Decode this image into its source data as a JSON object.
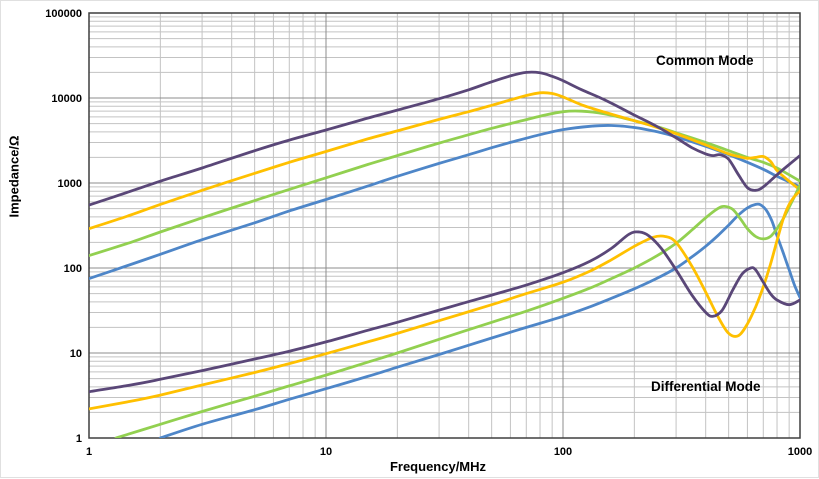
{
  "chart_data": {
    "type": "line",
    "title": "",
    "xlabel": "Frequency/MHz",
    "ylabel": "Impedance/Ω",
    "x_scale": "log",
    "y_scale": "log",
    "xlim": [
      1,
      1000
    ],
    "ylim": [
      1,
      100000
    ],
    "x_ticks": [
      "1",
      "10",
      "100",
      "1000"
    ],
    "y_ticks": [
      "1",
      "10",
      "100",
      "1000",
      "10000",
      "100000"
    ],
    "grid": "log major and minor, gray",
    "legend": "none",
    "annotations": [
      {
        "text": "Common Mode"
      },
      {
        "text": "Differential Mode"
      }
    ],
    "colors": {
      "purple": "#5A4778",
      "orange": "#FFC000",
      "green": "#92D050",
      "blue": "#4E86C8"
    },
    "series": [
      {
        "name": "common-mode-blue",
        "group": "common-mode",
        "color": "#4E86C8",
        "points": [
          [
            1,
            75
          ],
          [
            1.5,
            110
          ],
          [
            2,
            145
          ],
          [
            3,
            215
          ],
          [
            5,
            340
          ],
          [
            7,
            470
          ],
          [
            10,
            640
          ],
          [
            15,
            920
          ],
          [
            20,
            1200
          ],
          [
            30,
            1700
          ],
          [
            40,
            2150
          ],
          [
            50,
            2600
          ],
          [
            60,
            3000
          ],
          [
            80,
            3700
          ],
          [
            100,
            4250
          ],
          [
            130,
            4650
          ],
          [
            160,
            4750
          ],
          [
            200,
            4500
          ],
          [
            250,
            4000
          ],
          [
            300,
            3500
          ],
          [
            400,
            2700
          ],
          [
            500,
            2150
          ],
          [
            600,
            1750
          ],
          [
            700,
            1450
          ],
          [
            800,
            1200
          ],
          [
            900,
            1030
          ],
          [
            1000,
            900
          ]
        ]
      },
      {
        "name": "common-mode-green",
        "group": "common-mode",
        "color": "#92D050",
        "points": [
          [
            1,
            140
          ],
          [
            1.5,
            200
          ],
          [
            2,
            265
          ],
          [
            3,
            390
          ],
          [
            5,
            620
          ],
          [
            7,
            840
          ],
          [
            10,
            1150
          ],
          [
            15,
            1650
          ],
          [
            20,
            2100
          ],
          [
            30,
            2950
          ],
          [
            40,
            3700
          ],
          [
            50,
            4400
          ],
          [
            60,
            5000
          ],
          [
            80,
            6100
          ],
          [
            100,
            6900
          ],
          [
            120,
            7000
          ],
          [
            150,
            6500
          ],
          [
            200,
            5400
          ],
          [
            250,
            4600
          ],
          [
            300,
            3900
          ],
          [
            400,
            3000
          ],
          [
            500,
            2400
          ],
          [
            600,
            2000
          ],
          [
            700,
            1750
          ],
          [
            800,
            1500
          ],
          [
            900,
            1250
          ],
          [
            1000,
            1050
          ]
        ]
      },
      {
        "name": "common-mode-orange",
        "group": "common-mode",
        "color": "#FFC000",
        "points": [
          [
            1,
            290
          ],
          [
            1.5,
            420
          ],
          [
            2,
            560
          ],
          [
            3,
            820
          ],
          [
            5,
            1300
          ],
          [
            7,
            1750
          ],
          [
            10,
            2350
          ],
          [
            15,
            3300
          ],
          [
            20,
            4100
          ],
          [
            30,
            5600
          ],
          [
            40,
            6900
          ],
          [
            50,
            8200
          ],
          [
            60,
            9500
          ],
          [
            70,
            10700
          ],
          [
            80,
            11500
          ],
          [
            90,
            11300
          ],
          [
            100,
            10300
          ],
          [
            120,
            8300
          ],
          [
            150,
            6800
          ],
          [
            200,
            5400
          ],
          [
            250,
            4500
          ],
          [
            300,
            3800
          ],
          [
            400,
            2800
          ],
          [
            500,
            2200
          ],
          [
            550,
            2050
          ],
          [
            600,
            1950
          ],
          [
            650,
            2000
          ],
          [
            700,
            2050
          ],
          [
            750,
            1800
          ],
          [
            800,
            1400
          ],
          [
            900,
            1050
          ],
          [
            1000,
            830
          ]
        ]
      },
      {
        "name": "common-mode-purple",
        "group": "common-mode",
        "color": "#5A4778",
        "points": [
          [
            1,
            550
          ],
          [
            1.5,
            800
          ],
          [
            2,
            1050
          ],
          [
            3,
            1500
          ],
          [
            5,
            2400
          ],
          [
            7,
            3200
          ],
          [
            10,
            4200
          ],
          [
            15,
            5800
          ],
          [
            20,
            7200
          ],
          [
            30,
            9800
          ],
          [
            40,
            12500
          ],
          [
            50,
            15500
          ],
          [
            60,
            18200
          ],
          [
            70,
            20000
          ],
          [
            80,
            19800
          ],
          [
            90,
            18000
          ],
          [
            100,
            16000
          ],
          [
            120,
            12500
          ],
          [
            150,
            9500
          ],
          [
            200,
            6300
          ],
          [
            250,
            4600
          ],
          [
            300,
            3400
          ],
          [
            350,
            2600
          ],
          [
            400,
            2200
          ],
          [
            430,
            2100
          ],
          [
            460,
            2150
          ],
          [
            500,
            1900
          ],
          [
            550,
            1250
          ],
          [
            600,
            880
          ],
          [
            650,
            820
          ],
          [
            700,
            900
          ],
          [
            800,
            1250
          ],
          [
            900,
            1650
          ],
          [
            1000,
            2100
          ]
        ]
      },
      {
        "name": "differential-mode-blue",
        "group": "differential-mode",
        "color": "#4E86C8",
        "points": [
          [
            2,
            1
          ],
          [
            3,
            1.45
          ],
          [
            5,
            2.15
          ],
          [
            7,
            2.85
          ],
          [
            10,
            3.8
          ],
          [
            15,
            5.3
          ],
          [
            20,
            6.8
          ],
          [
            30,
            9.6
          ],
          [
            50,
            15
          ],
          [
            70,
            20
          ],
          [
            100,
            27
          ],
          [
            130,
            35
          ],
          [
            160,
            44
          ],
          [
            200,
            57
          ],
          [
            250,
            76
          ],
          [
            300,
            100
          ],
          [
            350,
            135
          ],
          [
            400,
            180
          ],
          [
            450,
            240
          ],
          [
            500,
            320
          ],
          [
            550,
            420
          ],
          [
            600,
            510
          ],
          [
            650,
            560
          ],
          [
            680,
            555
          ],
          [
            720,
            480
          ],
          [
            760,
            360
          ],
          [
            800,
            240
          ],
          [
            850,
            150
          ],
          [
            900,
            95
          ],
          [
            950,
            62
          ],
          [
            1000,
            45
          ]
        ]
      },
      {
        "name": "differential-mode-green",
        "group": "differential-mode",
        "color": "#92D050",
        "points": [
          [
            1.3,
            1
          ],
          [
            2,
            1.45
          ],
          [
            3,
            2.05
          ],
          [
            5,
            3.1
          ],
          [
            7,
            4.1
          ],
          [
            10,
            5.5
          ],
          [
            15,
            7.8
          ],
          [
            20,
            10
          ],
          [
            30,
            14.5
          ],
          [
            50,
            23
          ],
          [
            70,
            31
          ],
          [
            100,
            44
          ],
          [
            130,
            58
          ],
          [
            160,
            75
          ],
          [
            200,
            100
          ],
          [
            250,
            140
          ],
          [
            300,
            195
          ],
          [
            350,
            280
          ],
          [
            400,
            390
          ],
          [
            450,
            500
          ],
          [
            480,
            530
          ],
          [
            520,
            490
          ],
          [
            560,
            380
          ],
          [
            600,
            290
          ],
          [
            650,
            235
          ],
          [
            700,
            220
          ],
          [
            750,
            235
          ],
          [
            800,
            290
          ],
          [
            850,
            380
          ],
          [
            900,
            520
          ],
          [
            950,
            700
          ],
          [
            1000,
            950
          ]
        ]
      },
      {
        "name": "differential-mode-orange",
        "group": "differential-mode",
        "color": "#FFC000",
        "points": [
          [
            1,
            2.2
          ],
          [
            1.5,
            2.7
          ],
          [
            2,
            3.2
          ],
          [
            3,
            4.2
          ],
          [
            5,
            5.9
          ],
          [
            7,
            7.5
          ],
          [
            10,
            9.8
          ],
          [
            15,
            13.5
          ],
          [
            20,
            17
          ],
          [
            30,
            24
          ],
          [
            50,
            37
          ],
          [
            70,
            50
          ],
          [
            100,
            68
          ],
          [
            130,
            92
          ],
          [
            160,
            125
          ],
          [
            200,
            180
          ],
          [
            240,
            230
          ],
          [
            270,
            235
          ],
          [
            300,
            200
          ],
          [
            350,
            105
          ],
          [
            400,
            52
          ],
          [
            450,
            27
          ],
          [
            500,
            17
          ],
          [
            550,
            16
          ],
          [
            600,
            22
          ],
          [
            650,
            35
          ],
          [
            700,
            60
          ],
          [
            750,
            110
          ],
          [
            800,
            210
          ],
          [
            850,
            380
          ],
          [
            900,
            560
          ],
          [
            950,
            700
          ],
          [
            1000,
            800
          ]
        ]
      },
      {
        "name": "differential-mode-purple",
        "group": "differential-mode",
        "color": "#5A4778",
        "points": [
          [
            1,
            3.5
          ],
          [
            1.5,
            4.2
          ],
          [
            2,
            4.9
          ],
          [
            3,
            6.2
          ],
          [
            5,
            8.5
          ],
          [
            7,
            10.5
          ],
          [
            10,
            13.5
          ],
          [
            15,
            18.5
          ],
          [
            20,
            23
          ],
          [
            30,
            32
          ],
          [
            50,
            48
          ],
          [
            70,
            63
          ],
          [
            100,
            88
          ],
          [
            130,
            120
          ],
          [
            160,
            170
          ],
          [
            190,
            250
          ],
          [
            210,
            265
          ],
          [
            230,
            240
          ],
          [
            260,
            170
          ],
          [
            300,
            95
          ],
          [
            350,
            48
          ],
          [
            400,
            30
          ],
          [
            430,
            27
          ],
          [
            470,
            32
          ],
          [
            520,
            55
          ],
          [
            570,
            85
          ],
          [
            620,
            100
          ],
          [
            650,
            95
          ],
          [
            700,
            68
          ],
          [
            750,
            50
          ],
          [
            800,
            42
          ],
          [
            900,
            37
          ],
          [
            1000,
            42
          ]
        ]
      }
    ]
  }
}
